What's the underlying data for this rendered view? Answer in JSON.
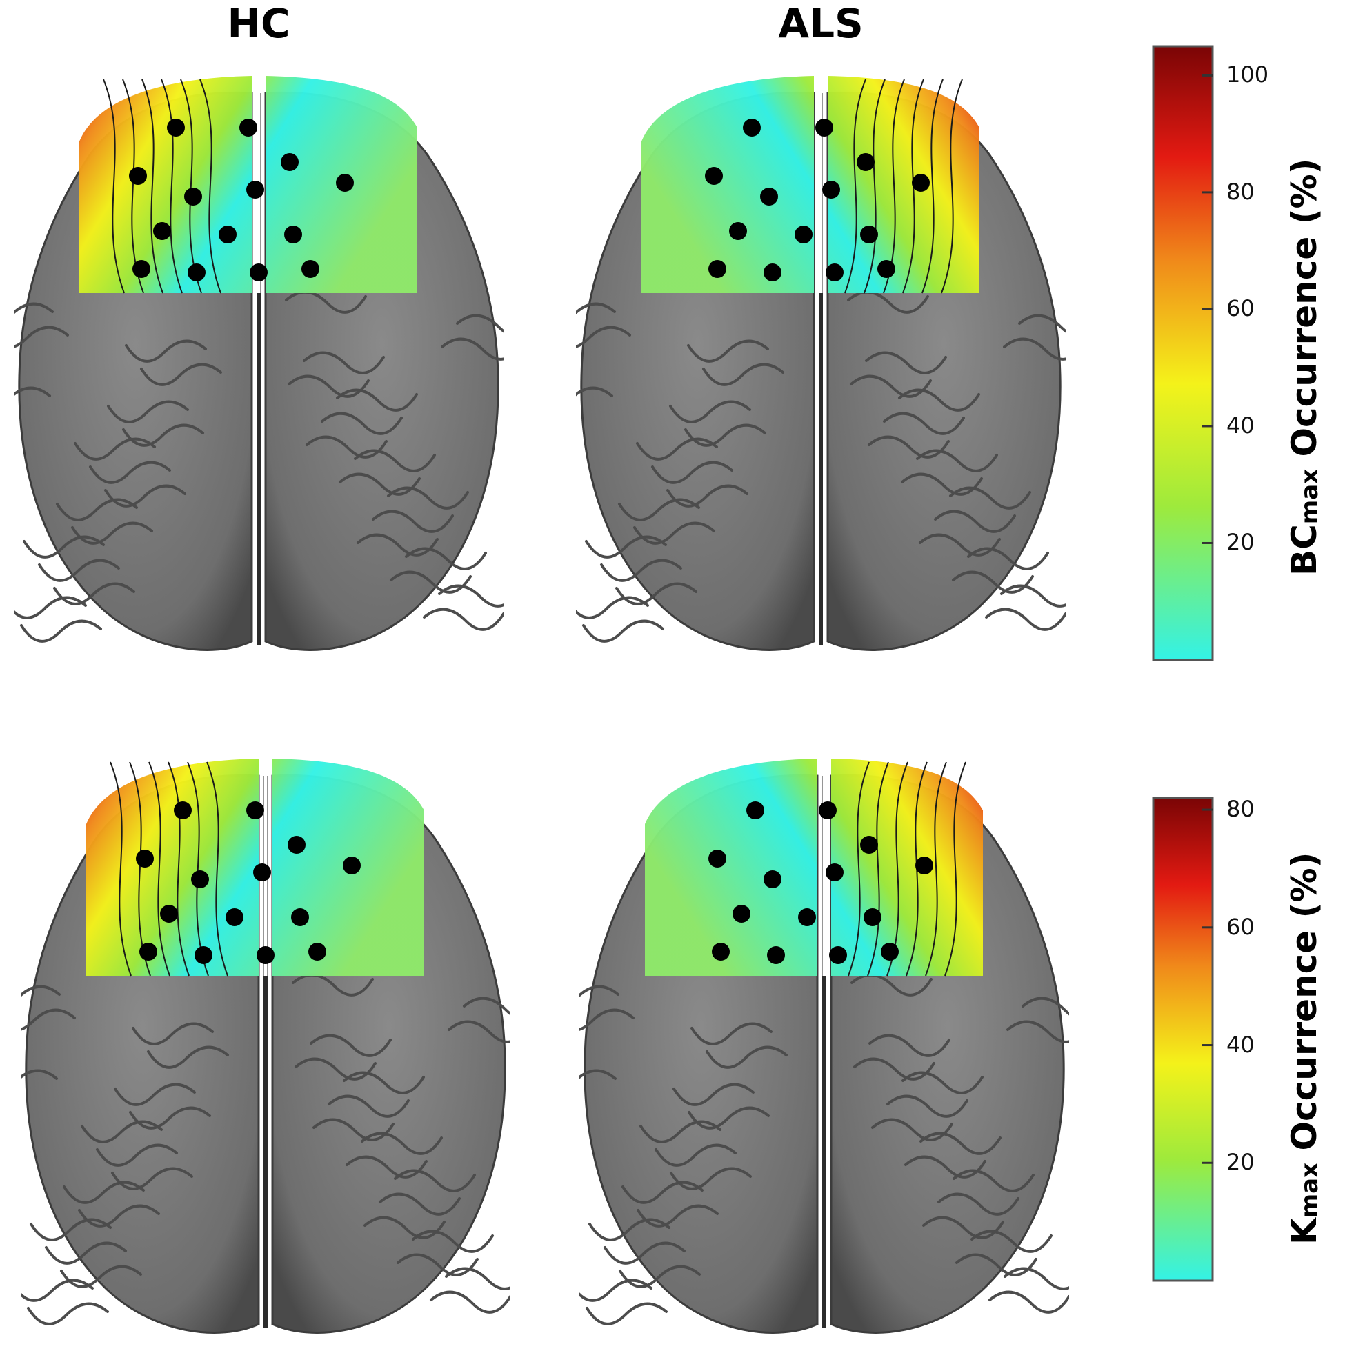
{
  "columns": [
    "HC",
    "ALS"
  ],
  "rows": [
    {
      "colorbar": {
        "label_main": "BC",
        "label_sub": "max",
        "label_rest": " Occurrence (%)",
        "ticks": [
          100,
          80,
          60,
          40,
          20
        ],
        "range": [
          0,
          105
        ]
      },
      "panels": [
        {
          "group": "HC",
          "hot_side": "left"
        },
        {
          "group": "ALS",
          "hot_side": "right"
        }
      ]
    },
    {
      "colorbar": {
        "label_main": "K",
        "label_sub": "max",
        "label_rest": " Occurrence (%)",
        "ticks": [
          80,
          60,
          40,
          20
        ],
        "range": [
          0,
          82
        ]
      },
      "panels": [
        {
          "group": "HC",
          "hot_side": "left"
        },
        {
          "group": "ALS",
          "hot_side": "right"
        }
      ]
    }
  ],
  "colors": {
    "brain_gray": "#6e6e6e",
    "brain_dark": "#4a4a4a",
    "cyan": "#33f2e6",
    "green": "#9eea3c",
    "yellow": "#f4f21a",
    "orange": "#f08a1a",
    "red": "#e31a12",
    "darkred": "#7a0505",
    "electrode": "#000000"
  }
}
